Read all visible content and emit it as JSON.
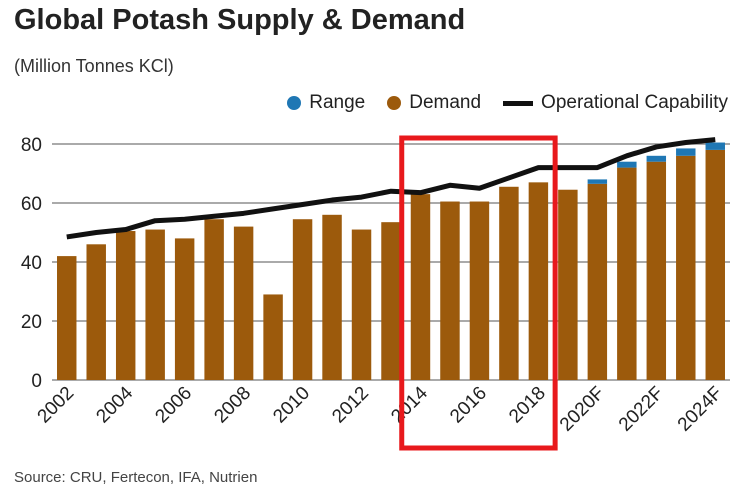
{
  "chart_data": {
    "type": "bar",
    "title": "Global Potash Supply & Demand",
    "subtitle": "(Million Tonnes KCl)",
    "source": "Source: CRU, Fertecon, IFA, Nutrien",
    "legend": [
      {
        "name": "Range",
        "color": "#1f77b4"
      },
      {
        "name": "Demand",
        "color": "#9c5a0c"
      },
      {
        "name": "Operational Capability",
        "color": "#111111"
      }
    ],
    "legend_placement": "top-right",
    "categories": [
      "2002",
      "2003",
      "2004",
      "2005",
      "2006",
      "2007",
      "2008",
      "2009",
      "2010",
      "2011",
      "2012",
      "2013",
      "2014",
      "2015",
      "2016",
      "2017",
      "2018",
      "2019",
      "2020F",
      "2021F",
      "2022F",
      "2023F",
      "2024F"
    ],
    "x_tick_labels": [
      "2002",
      "2004",
      "2006",
      "2008",
      "2010",
      "2012",
      "2014",
      "2016",
      "2018",
      "2020F",
      "2022F",
      "2024F"
    ],
    "series": [
      {
        "name": "Demand",
        "type": "bar",
        "values": [
          42,
          46,
          50.5,
          51,
          48,
          54.5,
          52,
          29,
          54.5,
          56,
          51,
          53.5,
          63,
          60.5,
          60.5,
          65.5,
          67,
          64.5,
          66.5,
          72,
          74,
          76,
          78
        ]
      },
      {
        "name": "Range",
        "type": "bar-stacked",
        "values": [
          0,
          0,
          0,
          0,
          0,
          0,
          0,
          0,
          0,
          0,
          0,
          0,
          0,
          0,
          0,
          0,
          0,
          0,
          1.5,
          2,
          2,
          2.5,
          2.5
        ]
      },
      {
        "name": "Operational Capability",
        "type": "line",
        "values": [
          48.5,
          50,
          51,
          54,
          54.5,
          55.5,
          56.5,
          58,
          59.5,
          61,
          62,
          64,
          63.5,
          66,
          65,
          68.5,
          72,
          72,
          72,
          76,
          79,
          80.5,
          81.5
        ]
      }
    ],
    "ylim": [
      0,
      80
    ],
    "y_ticks": [
      0,
      20,
      40,
      60,
      80
    ],
    "grid": true,
    "annotation": {
      "type": "highlight-box",
      "from": "2014",
      "to": "2018",
      "color": "#e8191c"
    }
  }
}
